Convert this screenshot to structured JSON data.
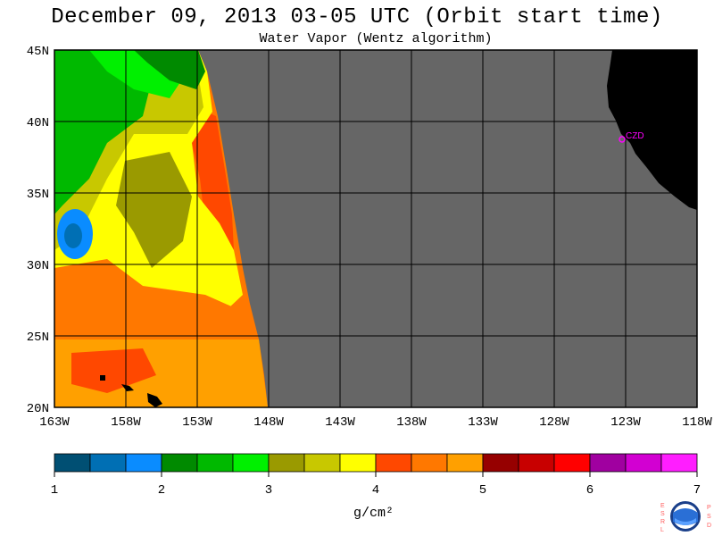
{
  "title": "December 09, 2013  03-05 UTC  (Orbit start time)",
  "subtitle": "Water Vapor (Wentz algorithm)",
  "map": {
    "lat_labels": [
      "45N",
      "40N",
      "35N",
      "30N",
      "25N",
      "20N"
    ],
    "lon_labels": [
      "163W",
      "158W",
      "153W",
      "148W",
      "143W",
      "138W",
      "133W",
      "128W",
      "123W",
      "118W"
    ],
    "lat_range": [
      20,
      45
    ],
    "lon_range": [
      -163,
      -118
    ],
    "station_label": "CZD",
    "colors": {
      "nodata": "#666666",
      "land": "#000000",
      "grid": "#000000",
      "station": "#ff00ff"
    }
  },
  "colorbar": {
    "colors": [
      "#004f73",
      "#006fb4",
      "#0a8cff",
      "#008a00",
      "#00b900",
      "#00f000",
      "#9a9a00",
      "#c8c800",
      "#ffff00",
      "#ff4800",
      "#ff7800",
      "#ffa000",
      "#960000",
      "#c80000",
      "#ff0000",
      "#a000a0",
      "#d200d2",
      "#ff1eff"
    ],
    "tick_labels": [
      "1",
      "2",
      "3",
      "4",
      "5",
      "6",
      "7"
    ],
    "units": "g/cm²"
  },
  "logo": {
    "name": "NOAA",
    "left_letters": [
      "E",
      "S",
      "R",
      "L"
    ],
    "right_letters": [
      "P",
      "S",
      "D"
    ]
  }
}
